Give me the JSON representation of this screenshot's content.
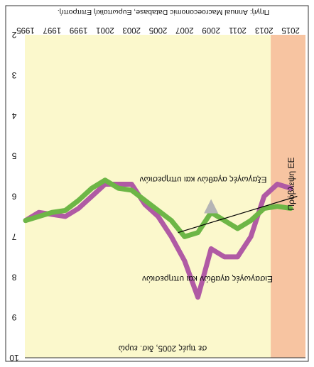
{
  "chart_data": {
    "type": "line",
    "orientation": "rotated-180",
    "source_text": "Πηγή: Annual Macroeconomic Database, Ευρωπαϊκή Επιτροπή.",
    "unit_text": "σε τιμές 2005, δισ. ευρώ",
    "forecast_label": "Πρόβλεψη ΕΕ",
    "x_ticks": [
      "1995",
      "1997",
      "1999",
      "2001",
      "2003",
      "2005",
      "2007",
      "2009",
      "2011",
      "2013",
      "2015"
    ],
    "y_ticks": [
      "2",
      "3",
      "4",
      "5",
      "6",
      "7",
      "8",
      "9",
      "10"
    ],
    "ylim": [
      2,
      10
    ],
    "x": [
      1995,
      1996,
      1997,
      1998,
      1999,
      2000,
      2001,
      2002,
      2003,
      2004,
      2005,
      2006,
      2007,
      2008,
      2009,
      2010,
      2011,
      2012,
      2013,
      2014,
      2015
    ],
    "forecast_from": 2013.5,
    "series": [
      {
        "name": "Εισαγωγές αγαθών και υπηρεσιών",
        "color": "#b05aa4",
        "values": [
          6.6,
          6.4,
          6.45,
          6.5,
          6.3,
          6.0,
          5.7,
          5.7,
          5.7,
          6.2,
          6.5,
          7.0,
          7.6,
          8.5,
          7.3,
          7.5,
          7.5,
          7.0,
          6.0,
          5.7,
          5.8
        ]
      },
      {
        "name": "Εξαγωγές αγαθών και υπηρεσιών",
        "color": "#6db646",
        "values": [
          6.6,
          6.5,
          6.4,
          6.35,
          6.1,
          5.8,
          5.6,
          5.8,
          5.85,
          6.1,
          6.35,
          6.6,
          7.0,
          6.9,
          6.4,
          6.6,
          6.8,
          6.6,
          6.3,
          6.25,
          6.3
        ]
      }
    ],
    "trend_line": {
      "from": [
        2006.5,
        6.9
      ],
      "to": [
        2015.5,
        6.0
      ]
    },
    "annotation_marker": {
      "x": 2009,
      "y": 6.0
    }
  }
}
